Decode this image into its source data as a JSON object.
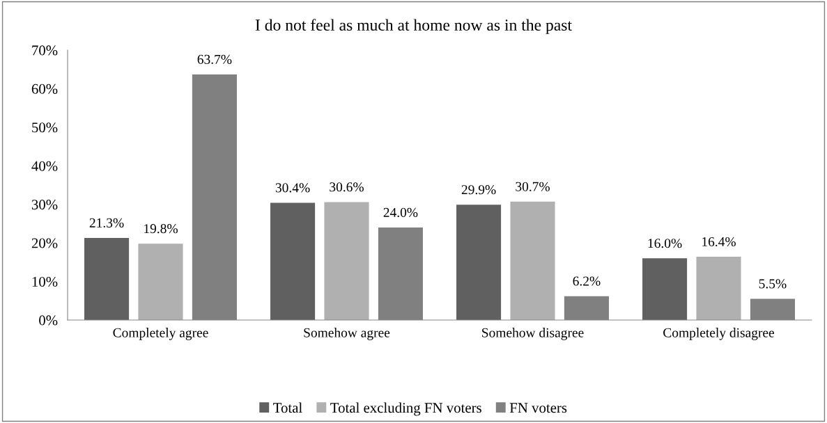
{
  "chart_data": {
    "type": "bar",
    "title": "I do not feel as much at home now as in the past",
    "categories": [
      "Completely agree",
      "Somehow agree",
      "Somehow disagree",
      "Completely disagree"
    ],
    "series": [
      {
        "name": "Total",
        "color": "#606060",
        "values": [
          21.3,
          30.4,
          29.9,
          16.0
        ],
        "value_labels": [
          "21.3%",
          "30.4%",
          "29.9%",
          "16.0%"
        ]
      },
      {
        "name": "Total excluding FN voters",
        "color": "#b0b0b0",
        "values": [
          19.8,
          30.6,
          30.7,
          16.4
        ],
        "value_labels": [
          "19.8%",
          "30.6%",
          "30.7%",
          "16.4%"
        ]
      },
      {
        "name": "FN voters",
        "color": "#808080",
        "values": [
          63.7,
          24.0,
          6.2,
          5.5
        ],
        "value_labels": [
          "63.7%",
          "24.0%",
          "6.2%",
          "5.5%"
        ]
      }
    ],
    "ylim": [
      0,
      70
    ],
    "yticks": [
      {
        "value": 0,
        "label": "0%"
      },
      {
        "value": 10,
        "label": "10%"
      },
      {
        "value": 20,
        "label": "20%"
      },
      {
        "value": 30,
        "label": "30%"
      },
      {
        "value": 40,
        "label": "40%"
      },
      {
        "value": 50,
        "label": "50%"
      },
      {
        "value": 60,
        "label": "60%"
      },
      {
        "value": 70,
        "label": "70%"
      }
    ],
    "grid": false,
    "legend": "bottom"
  }
}
